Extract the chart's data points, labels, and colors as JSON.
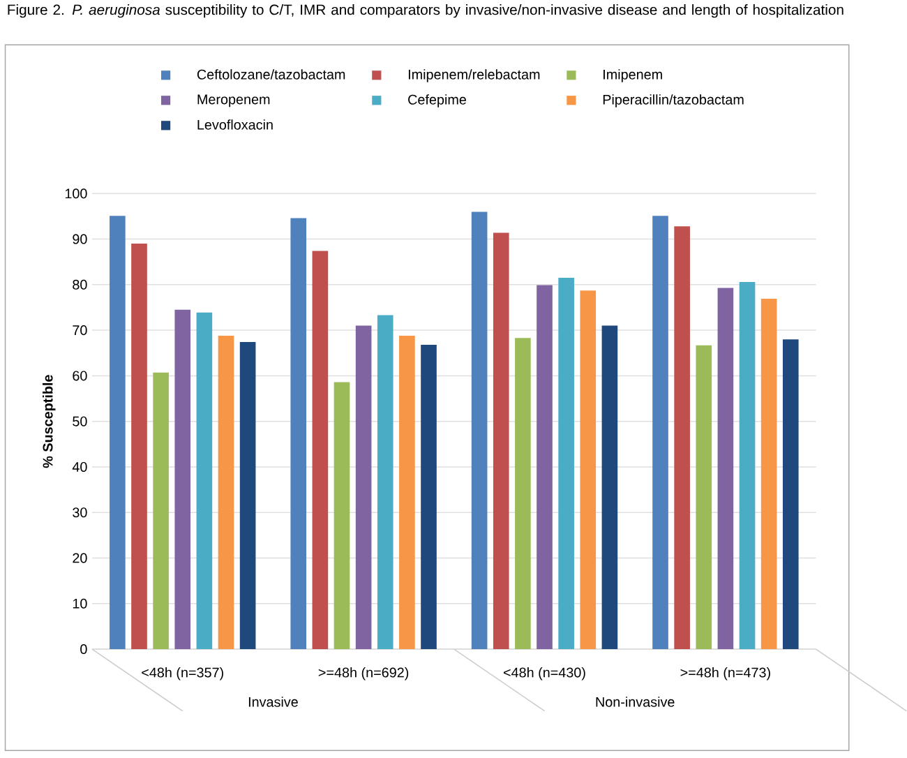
{
  "chart_data": {
    "type": "bar",
    "title": "Figure 2. *P. aeruginosa* susceptibility to C/T, IMR and comparators by invasive/non-invasive disease and length of hospitalization",
    "ylabel": "% Susceptible",
    "categories": [
      "<48h (n=357)",
      ">=48h (n=692)",
      "<48h (n=430)",
      ">=48h (n=473)"
    ],
    "series": [
      {
        "name": "Ceftolozane/tazobactam",
        "color": "#4f81bd",
        "values": [
          95.1,
          94.6,
          96.0,
          95.1
        ]
      },
      {
        "name": "Imipenem/relebactam",
        "color": "#c0504d",
        "values": [
          89.0,
          87.4,
          91.4,
          92.8
        ]
      },
      {
        "name": "Imipenem",
        "color": "#9bbb59",
        "values": [
          60.7,
          58.6,
          68.3,
          66.7
        ]
      },
      {
        "name": "Meropenem",
        "color": "#8064a2",
        "values": [
          74.5,
          71.0,
          79.9,
          79.3
        ]
      },
      {
        "name": "Cefepime",
        "color": "#4bacc6",
        "values": [
          73.9,
          73.3,
          81.5,
          80.6
        ]
      },
      {
        "name": "Piperacillin/tazobactam",
        "color": "#f79646",
        "values": [
          68.8,
          68.8,
          78.7,
          76.9
        ]
      },
      {
        "name": "Levofloxacin",
        "color": "#1f497d",
        "values": [
          67.4,
          66.8,
          71.0,
          68.0
        ]
      }
    ],
    "ylim": [
      0,
      100
    ],
    "yticks": [
      0,
      10,
      20,
      30,
      40,
      50,
      60,
      70,
      80,
      90,
      100
    ],
    "grid": "y",
    "legend": "top",
    "annotations": [
      "Invasive",
      "Non-invasive"
    ]
  }
}
